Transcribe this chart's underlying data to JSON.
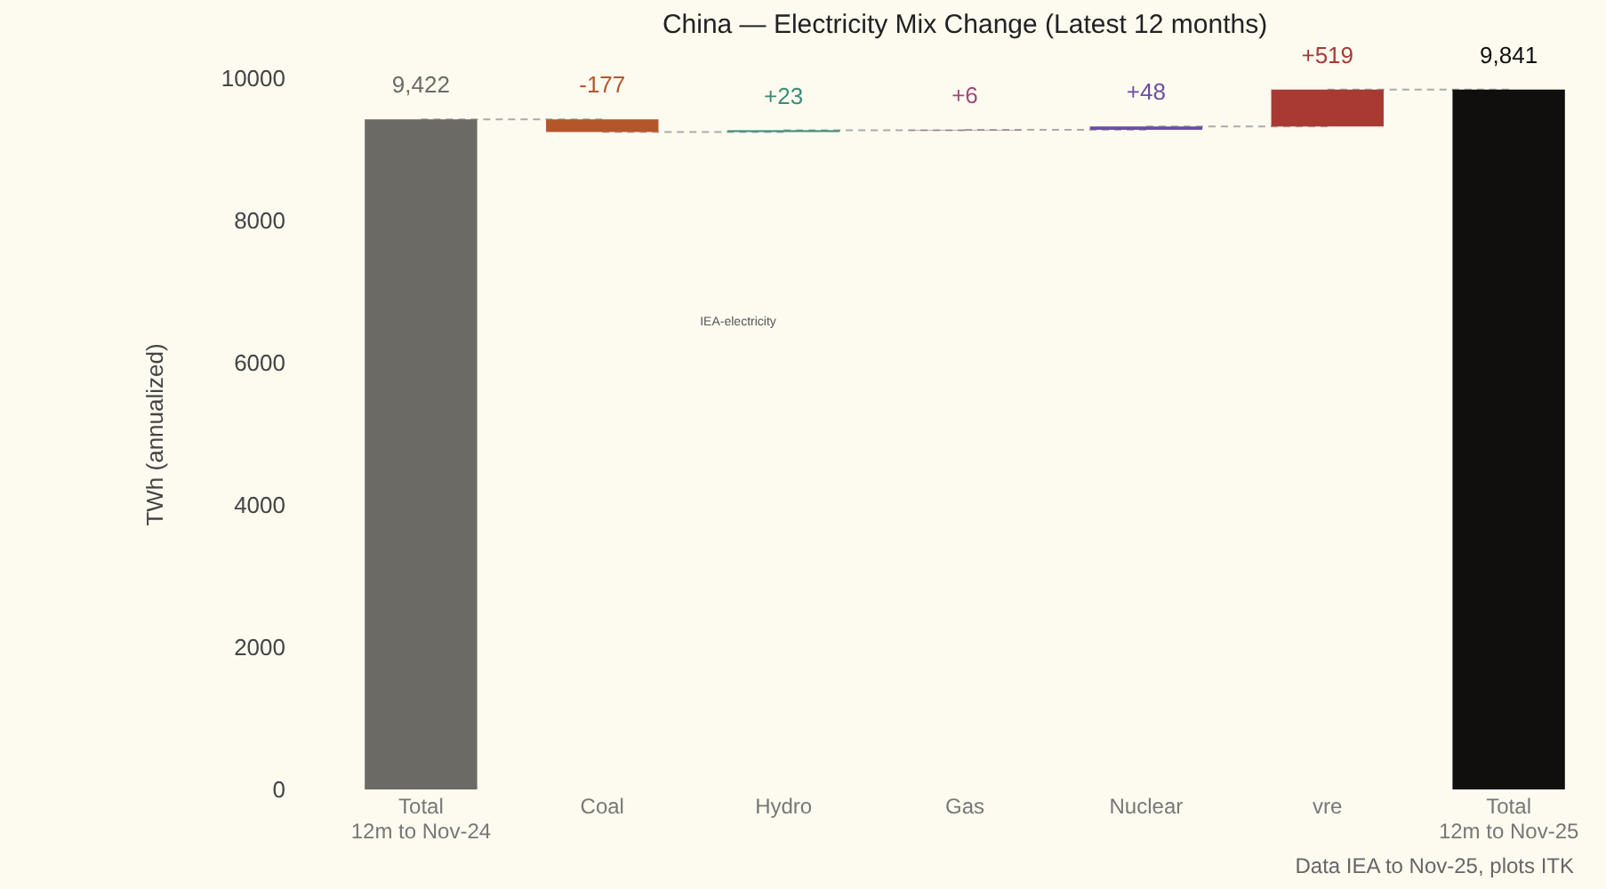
{
  "chart_data": {
    "type": "bar",
    "title": "China — Electricity Mix Change (Latest 12 months)",
    "ylabel": "TWh (annualized)",
    "categories": [
      "Total\n12m to Nov-24",
      "Coal",
      "Hydro",
      "Gas",
      "Nuclear",
      "vre",
      "Total\n12m to Nov-25"
    ],
    "values": [
      9422,
      -177,
      23,
      6,
      48,
      519,
      9841
    ],
    "base": [
      0,
      9422,
      9245,
      9268,
      9274,
      9322,
      0
    ],
    "colors": [
      "#6b6a64",
      "#b5562a",
      "#3a8c78",
      "#a04a7a",
      "#6a4fa0",
      "#a83a32",
      "#110e0e"
    ],
    "value_labels": [
      "9,422",
      "-177",
      "+23",
      "+6",
      "+48",
      "+519",
      "9,841"
    ],
    "ylim": [
      0,
      10000
    ],
    "yticks": [
      0,
      2000,
      4000,
      6000,
      8000,
      10000
    ],
    "grid": false,
    "annotations": [
      "IEA-electricity",
      "Data IEA to Nov-25, plots ITK"
    ]
  }
}
